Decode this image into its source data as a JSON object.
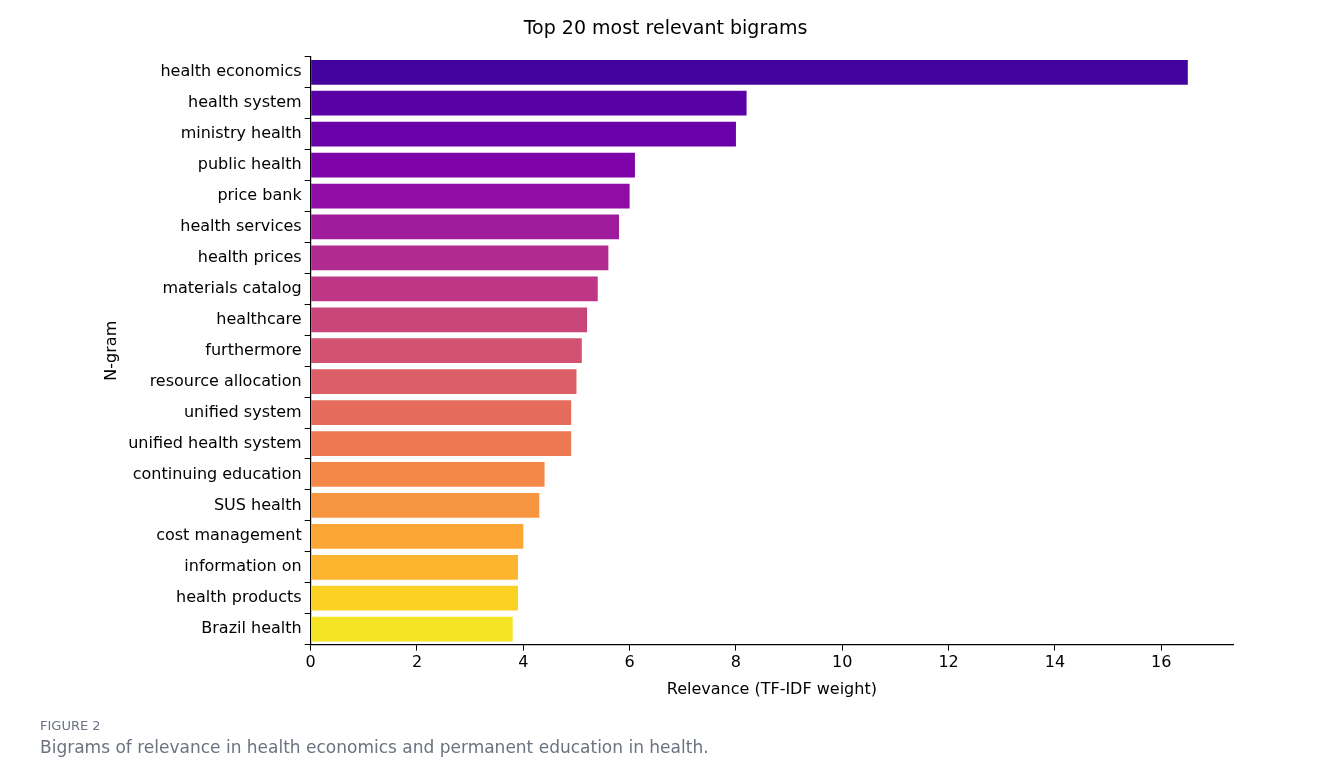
{
  "chart_data": {
    "type": "bar",
    "orientation": "horizontal",
    "title": "Top 20 most relevant bigrams",
    "xlabel": "Relevance (TF-IDF weight)",
    "ylabel": "N-gram",
    "categories": [
      "health economics",
      "health system",
      "ministry health",
      "public health",
      "price bank",
      "health services",
      "health prices",
      "materials catalog",
      "healthcare",
      "furthermore",
      "resource allocation",
      "unified system",
      "unified health system",
      "continuing education",
      "SUS health",
      "cost management",
      "information on",
      "health products",
      "Brazil health"
    ],
    "values": [
      16.5,
      8.2,
      8.0,
      6.1,
      6.0,
      5.8,
      5.6,
      5.4,
      5.2,
      5.1,
      5.0,
      4.9,
      4.9,
      4.4,
      4.3,
      4.0,
      3.9,
      3.9,
      3.8
    ],
    "colors": [
      "#43039e",
      "#5a01a5",
      "#6a00a8",
      "#7e03a8",
      "#8f0da4",
      "#a01a9c",
      "#b12a90",
      "#bd3786",
      "#c8467a",
      "#d35171",
      "#dc5e66",
      "#e56b5d",
      "#ed7953",
      "#f48849",
      "#f89540",
      "#fca636",
      "#fdb42f",
      "#fbd124",
      "#f4e424"
    ],
    "xlim": [
      0,
      17.35
    ],
    "xticks": [
      0,
      2,
      4,
      6,
      8,
      10,
      12,
      14,
      16
    ],
    "grid": false,
    "legend": false,
    "annotations": [
      "FIGURE 2",
      "Bigrams of relevance in health economics and permanent education in health."
    ]
  }
}
